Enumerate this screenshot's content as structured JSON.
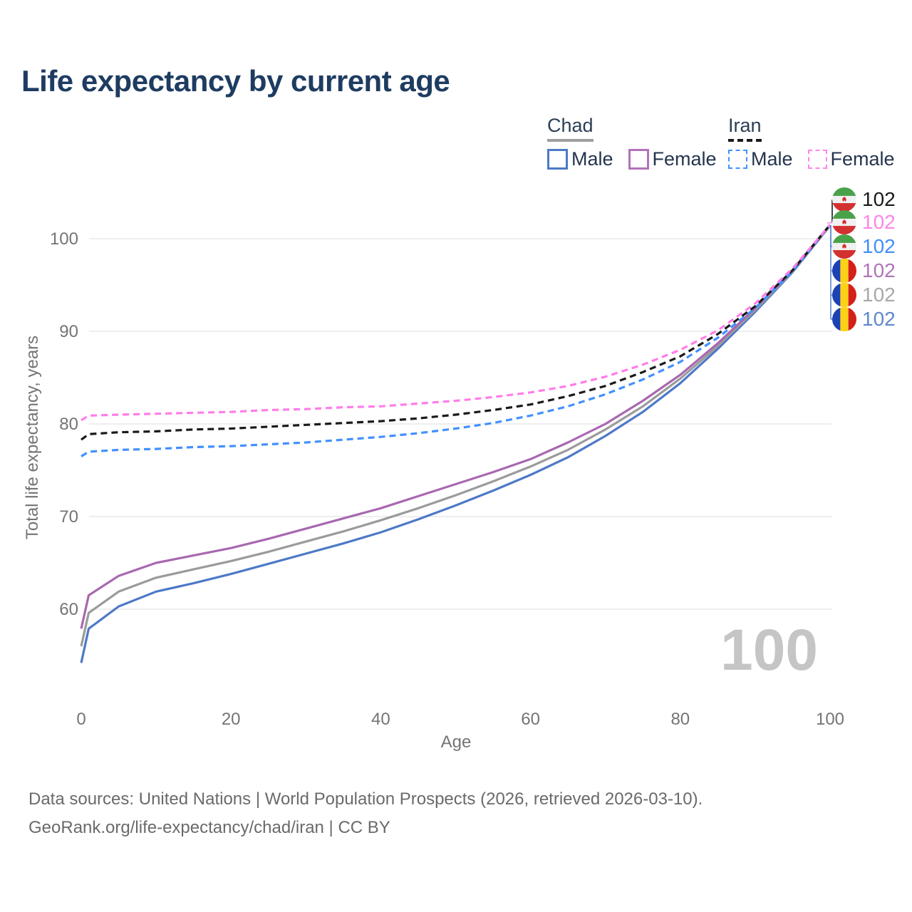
{
  "title": "Life expectancy by current age",
  "legend": {
    "groups": [
      {
        "id": "chad",
        "label": "Chad",
        "underline": "solid",
        "items": [
          {
            "id": "chad-male",
            "label": "Male",
            "color": "#4d79c7",
            "dash": "solid"
          },
          {
            "id": "chad-female",
            "label": "Female",
            "color": "#b173b8",
            "dash": "solid"
          }
        ]
      },
      {
        "id": "iran",
        "label": "Iran",
        "underline": "dashed",
        "items": [
          {
            "id": "iran-male",
            "label": "Male",
            "color": "#4191ff",
            "dash": "dashed"
          },
          {
            "id": "iran-female",
            "label": "Female",
            "color": "#ff85e8",
            "dash": "dashed"
          }
        ]
      }
    ]
  },
  "chart_data": {
    "type": "line",
    "title": "Life expectancy by current age",
    "xlabel": "Age",
    "ylabel": "Total life expectancy, years",
    "xlim": [
      0,
      100
    ],
    "ylim": [
      54,
      102
    ],
    "x_ticks": [
      0,
      20,
      40,
      60,
      80,
      100
    ],
    "y_ticks": [
      60,
      70,
      80,
      90,
      100
    ],
    "grid": "horizontal",
    "x": [
      0,
      1,
      5,
      10,
      15,
      20,
      25,
      30,
      35,
      40,
      45,
      50,
      55,
      60,
      65,
      70,
      75,
      80,
      85,
      90,
      95,
      100
    ],
    "series": [
      {
        "name": "Chad Male",
        "country": "Chad",
        "sex": "male",
        "color": "#4d79c7",
        "dash": "solid",
        "values": [
          54.2,
          57.9,
          60.3,
          61.9,
          62.8,
          63.8,
          64.9,
          66.0,
          67.1,
          68.3,
          69.7,
          71.2,
          72.8,
          74.5,
          76.4,
          78.7,
          81.3,
          84.4,
          88.1,
          92.1,
          96.4,
          101.4
        ]
      },
      {
        "name": "Chad Total",
        "country": "Chad",
        "sex": "total",
        "color": "#9b9b9b",
        "dash": "solid",
        "values": [
          56.0,
          59.6,
          61.9,
          63.4,
          64.3,
          65.2,
          66.2,
          67.3,
          68.4,
          69.6,
          70.9,
          72.3,
          73.8,
          75.4,
          77.2,
          79.4,
          81.9,
          84.9,
          88.4,
          92.3,
          96.5,
          101.4
        ]
      },
      {
        "name": "Chad Female",
        "country": "Chad",
        "sex": "female",
        "color": "#a868b0",
        "dash": "solid",
        "values": [
          57.9,
          61.5,
          63.6,
          65.0,
          65.8,
          66.6,
          67.6,
          68.7,
          69.8,
          70.9,
          72.2,
          73.5,
          74.8,
          76.2,
          78.0,
          80.0,
          82.5,
          85.3,
          88.7,
          92.5,
          96.6,
          101.5
        ]
      },
      {
        "name": "Iran Male",
        "country": "Iran",
        "sex": "male",
        "color": "#4191ff",
        "dash": "dashed",
        "values": [
          76.5,
          77.0,
          77.2,
          77.3,
          77.5,
          77.6,
          77.8,
          78.0,
          78.3,
          78.6,
          79.0,
          79.5,
          80.1,
          80.9,
          81.9,
          83.2,
          84.8,
          86.7,
          89.3,
          92.5,
          96.5,
          101.5
        ]
      },
      {
        "name": "Iran Total",
        "country": "Iran",
        "sex": "total",
        "color": "#1a1a1a",
        "dash": "dashed",
        "values": [
          78.3,
          78.9,
          79.1,
          79.2,
          79.4,
          79.5,
          79.7,
          79.9,
          80.1,
          80.3,
          80.6,
          81.0,
          81.5,
          82.1,
          83.0,
          84.1,
          85.6,
          87.3,
          89.7,
          92.7,
          96.6,
          101.5
        ]
      },
      {
        "name": "Iran Female",
        "country": "Iran",
        "sex": "female",
        "color": "#ff7de9",
        "dash": "dashed",
        "values": [
          80.4,
          80.9,
          81.0,
          81.1,
          81.2,
          81.3,
          81.5,
          81.6,
          81.8,
          81.9,
          82.2,
          82.5,
          82.9,
          83.4,
          84.1,
          85.1,
          86.4,
          88.0,
          90.1,
          93.0,
          96.8,
          101.5
        ]
      }
    ],
    "value_labels": [
      {
        "series": "Iran Total",
        "flag": "iran",
        "text": "102",
        "color": "#1a1a1a"
      },
      {
        "series": "Iran Female",
        "flag": "iran",
        "text": "102",
        "color": "#ff85e8"
      },
      {
        "series": "Iran Male",
        "flag": "iran",
        "text": "102",
        "color": "#3f8ffa"
      },
      {
        "series": "Chad Female",
        "flag": "chad",
        "text": "102",
        "color": "#b173b8"
      },
      {
        "series": "Chad Total",
        "flag": "chad",
        "text": "102",
        "color": "#a8a8a8"
      },
      {
        "series": "Chad Male",
        "flag": "chad",
        "text": "102",
        "color": "#5f87cc"
      }
    ],
    "legend_position": "top-right"
  },
  "watermark": "100",
  "footer": {
    "line1": "Data sources: United Nations | World Population Prospects (2026, retrieved 2026-03-10).",
    "line2": "GeoRank.org/life-expectancy/chad/iran | CC BY"
  }
}
